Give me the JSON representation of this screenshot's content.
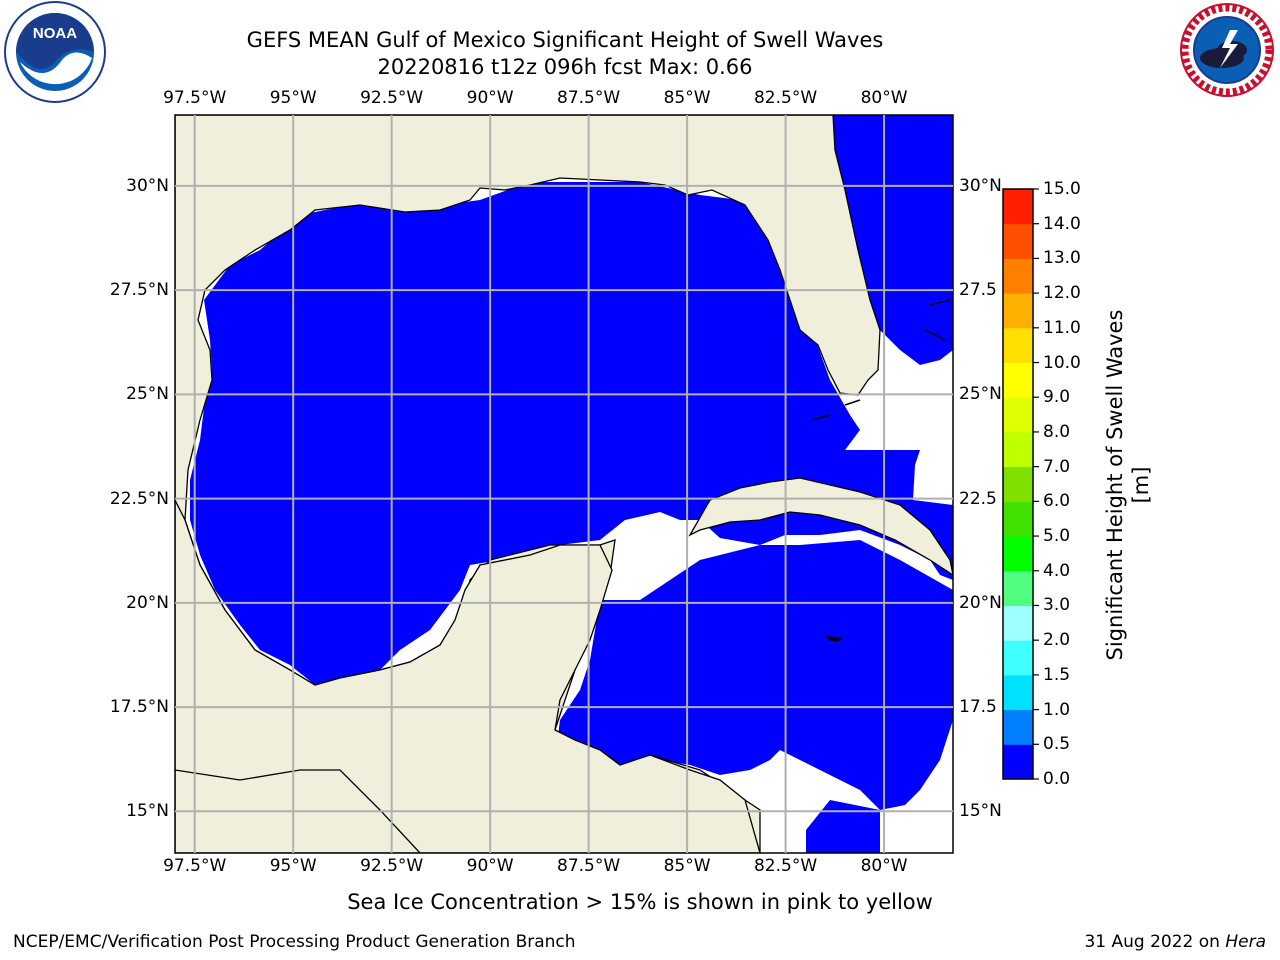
{
  "header": {
    "title_line1": "GEFS MEAN Gulf of Mexico Significant Height of Swell Waves",
    "title_line2": "20220816 t12z 096h fcst   Max: 0.66"
  },
  "map": {
    "lon_ticks": [
      "97.5°W",
      "95°W",
      "92.5°W",
      "90°W",
      "87.5°W",
      "85°W",
      "82.5°W",
      "80°W"
    ],
    "lon_values": [
      -97.5,
      -95,
      -92.5,
      -90,
      -87.5,
      -85,
      -82.5,
      -80
    ],
    "lat_ticks_left": [
      "30°N",
      "27.5°N",
      "25°N",
      "22.5°N",
      "20°N",
      "17.5°N",
      "15°N"
    ],
    "lat_ticks_right": [
      "30°N",
      "27.5",
      "25°N",
      "22.5",
      "20°N",
      "17.5",
      "15°N"
    ],
    "lat_values": [
      30,
      27.5,
      25,
      22.5,
      20,
      17.5,
      15
    ],
    "extent": {
      "lon_min": -98,
      "lon_max": -78.25,
      "lat_min": 14,
      "lat_max": 31.7
    },
    "colors": {
      "land": "#efefdc",
      "ocean_low": "#0000ff",
      "ocean_mid": "#0080ff",
      "no_data": "#ffffff",
      "grid": "#b0b0b0"
    }
  },
  "colorbar": {
    "label": "Significant Height of Swell Waves [m]",
    "ticks": [
      "15.0",
      "14.0",
      "13.0",
      "12.0",
      "11.0",
      "10.0",
      "9.0",
      "8.0",
      "7.0",
      "6.0",
      "5.0",
      "4.0",
      "3.0",
      "2.0",
      "1.5",
      "1.0",
      "0.5",
      "0.0"
    ],
    "colors_bottom_to_top": [
      "#0000ff",
      "#0080ff",
      "#00e0ff",
      "#40ffff",
      "#a0ffff",
      "#50ff80",
      "#00ff00",
      "#40e000",
      "#80e000",
      "#c0ff00",
      "#e0ff00",
      "#ffff00",
      "#ffe000",
      "#ffb000",
      "#ff8000",
      "#ff5000",
      "#ff2000"
    ]
  },
  "footer": {
    "note": "Sea Ice Concentration > 15% is shown in pink to yellow",
    "credit": "NCEP/EMC/Verification Post Processing Product Generation Branch",
    "date_prefix": "31 Aug 2022 on",
    "date_machine": "Hera"
  },
  "logos": {
    "left": {
      "name": "noaa-logo",
      "text": "NOAA"
    },
    "right": {
      "name": "nws-logo"
    }
  }
}
